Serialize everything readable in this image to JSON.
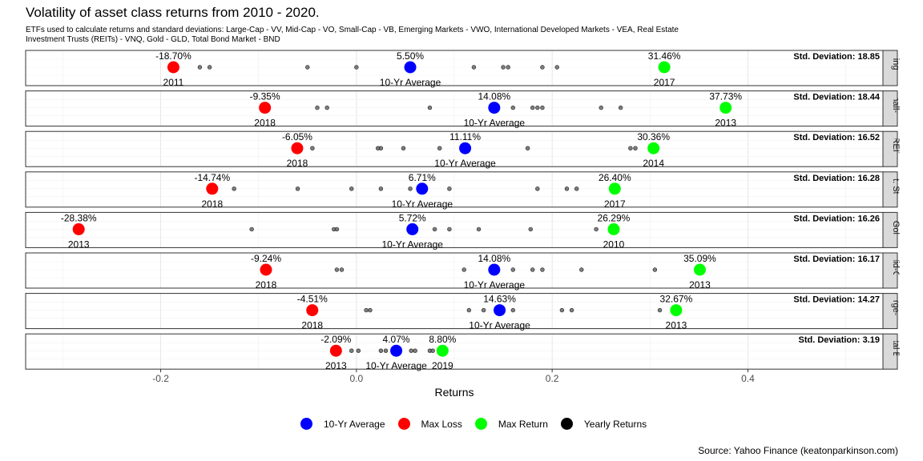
{
  "chart_data": {
    "type": "scatter",
    "title": "Volatility of asset class returns from 2010 - 2020.",
    "subtitle": "ETFs used to calculate returns and standard deviations: Large-Cap - VV, Mid-Cap - VO, Small-Cap - VB, Emerging Markets - VWO, International Developed Markets - VEA, Real Estate Investment Trusts (REITs) - VNQ, Gold - GLD, Total Bond Market - BND",
    "xlabel": "Returns",
    "ylabel": "",
    "xlim": [
      -0.338,
      0.538
    ],
    "x_ticks": [
      -0.2,
      0.0,
      0.2,
      0.4
    ],
    "x_tick_labels": [
      "-0.2",
      "0.0",
      "0.2",
      "0.4"
    ],
    "caption": "Source: Yahoo Finance (keatonparkinson.com)",
    "std_prefix": "Std. Deviation:",
    "legend": [
      {
        "name": "10-Yr Average",
        "color": "#0000ff"
      },
      {
        "name": "Max Loss",
        "color": "#ff0000"
      },
      {
        "name": "Max Return",
        "color": "#00ff00"
      },
      {
        "name": "Yearly Returns",
        "color": "#000000"
      }
    ],
    "panels": [
      {
        "strip": "Emerging Markets",
        "std": "18.85",
        "min": {
          "x": -0.187,
          "label": "-18.70%",
          "year": "2011"
        },
        "avg": {
          "x": 0.055,
          "label": "5.50%",
          "year": "10-Yr Average"
        },
        "max": {
          "x": 0.3146,
          "label": "31.46%",
          "year": "2017"
        },
        "yearly": [
          -0.16,
          -0.15,
          -0.05,
          0.0,
          0.12,
          0.15,
          0.155,
          0.19,
          0.205
        ]
      },
      {
        "strip": "Small-Cap",
        "std": "18.44",
        "min": {
          "x": -0.0935,
          "label": "-9.35%",
          "year": "2018"
        },
        "avg": {
          "x": 0.1408,
          "label": "14.08%",
          "year": "10-Yr Average"
        },
        "max": {
          "x": 0.3773,
          "label": "37.73%",
          "year": "2013"
        },
        "yearly": [
          -0.04,
          -0.03,
          0.075,
          0.16,
          0.18,
          0.185,
          0.19,
          0.25,
          0.27
        ]
      },
      {
        "strip": "REITs",
        "std": "16.52",
        "min": {
          "x": -0.0605,
          "label": "-6.05%",
          "year": "2018"
        },
        "avg": {
          "x": 0.1111,
          "label": "11.11%",
          "year": "10-Yr Average"
        },
        "max": {
          "x": 0.3036,
          "label": "30.36%",
          "year": "2014"
        },
        "yearly": [
          -0.045,
          0.022,
          0.025,
          0.048,
          0.085,
          0.175,
          0.28,
          0.285
        ]
      },
      {
        "strip": "Int. Stock",
        "std": "16.28",
        "min": {
          "x": -0.1474,
          "label": "-14.74%",
          "year": "2018"
        },
        "avg": {
          "x": 0.0671,
          "label": "6.71%",
          "year": "10-Yr Average"
        },
        "max": {
          "x": 0.264,
          "label": "26.40%",
          "year": "2017"
        },
        "yearly": [
          -0.125,
          -0.06,
          -0.005,
          0.025,
          0.055,
          0.095,
          0.185,
          0.215,
          0.225
        ]
      },
      {
        "strip": "Gold",
        "std": "16.26",
        "min": {
          "x": -0.2838,
          "label": "-28.38%",
          "year": "2013"
        },
        "avg": {
          "x": 0.0572,
          "label": "5.72%",
          "year": "10-Yr Average"
        },
        "max": {
          "x": 0.2629,
          "label": "26.29%",
          "year": "2010"
        },
        "yearly": [
          -0.107,
          -0.023,
          -0.02,
          0.08,
          0.095,
          0.125,
          0.178,
          0.245
        ]
      },
      {
        "strip": "Mid-Cap",
        "std": "16.17",
        "min": {
          "x": -0.0924,
          "label": "-9.24%",
          "year": "2018"
        },
        "avg": {
          "x": 0.1408,
          "label": "14.08%",
          "year": "10-Yr Average"
        },
        "max": {
          "x": 0.3509,
          "label": "35.09%",
          "year": "2013"
        },
        "yearly": [
          -0.02,
          -0.015,
          0.11,
          0.16,
          0.18,
          0.19,
          0.23,
          0.305
        ]
      },
      {
        "strip": "Large-Cap",
        "std": "14.27",
        "min": {
          "x": -0.0451,
          "label": "-4.51%",
          "year": "2018"
        },
        "avg": {
          "x": 0.1463,
          "label": "14.63%",
          "year": "10-Yr Average"
        },
        "max": {
          "x": 0.3267,
          "label": "32.67%",
          "year": "2013"
        },
        "yearly": [
          0.01,
          0.014,
          0.115,
          0.13,
          0.16,
          0.21,
          0.22,
          0.31
        ]
      },
      {
        "strip": "Total Bond",
        "std": "3.19",
        "min": {
          "x": -0.0209,
          "label": "-2.09%",
          "year": "2013"
        },
        "avg": {
          "x": 0.0407,
          "label": "4.07%",
          "year": "10-Yr Average"
        },
        "max": {
          "x": 0.088,
          "label": "8.80%",
          "year": "2019"
        },
        "yearly": [
          -0.005,
          0.002,
          0.025,
          0.03,
          0.056,
          0.06,
          0.075,
          0.078
        ]
      }
    ]
  }
}
